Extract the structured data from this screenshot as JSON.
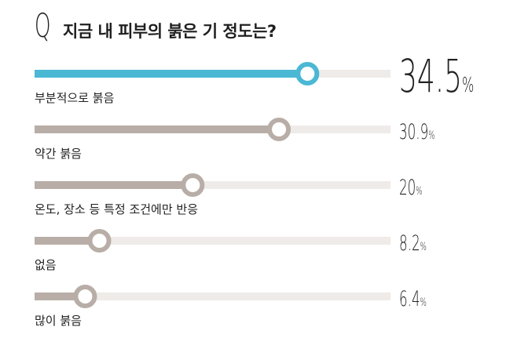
{
  "header": {
    "q_mark": "Q",
    "title": "지금 내 피부의 붉은 기 정도는?"
  },
  "chart_data": {
    "type": "bar",
    "orientation": "horizontal",
    "title": "지금 내 피부의 붉은 기 정도는?",
    "categories": [
      "부분적으로 붉음",
      "약간 붉음",
      "온도, 장소 등 특정 조건에만 반응",
      "없음",
      "많이 붉음"
    ],
    "values": [
      34.5,
      30.9,
      20,
      8.2,
      6.4
    ],
    "value_labels": [
      {
        "num": "34.5",
        "unit": "%"
      },
      {
        "num": "30.9",
        "unit": "%"
      },
      {
        "num": "20",
        "unit": "%"
      },
      {
        "num": "8.2",
        "unit": "%"
      },
      {
        "num": "6.4",
        "unit": "%"
      }
    ],
    "xlim": [
      0,
      45
    ],
    "grid": false,
    "colors": {
      "highlight": "#4bb8d4",
      "bar": "#b8aea7",
      "track": "#efebe8"
    }
  }
}
